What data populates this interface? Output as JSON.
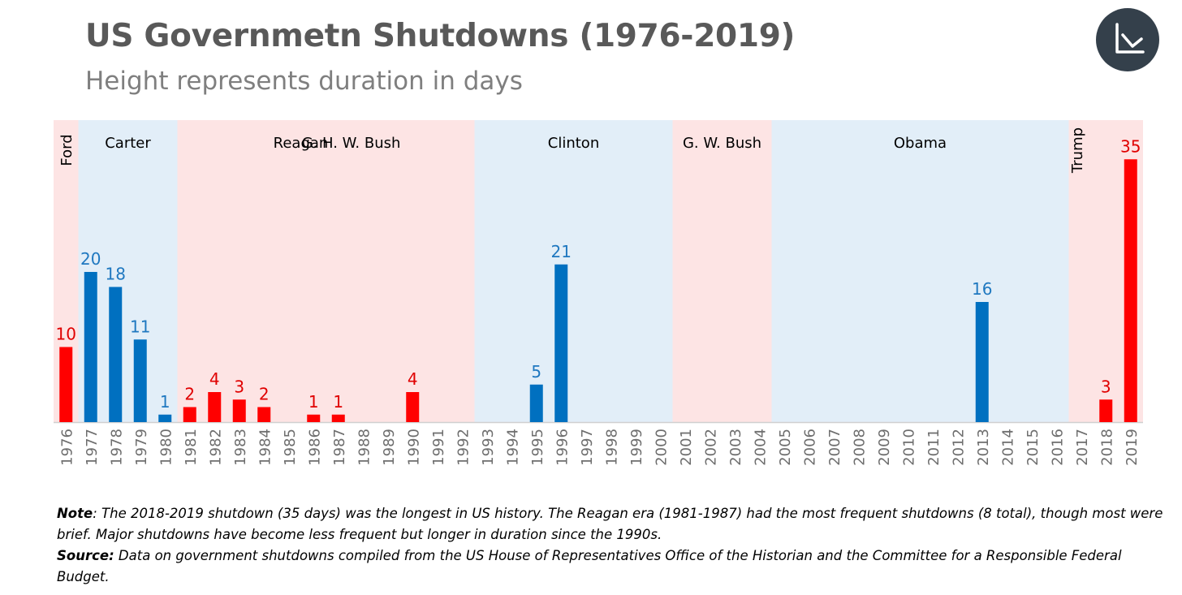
{
  "title": "US Governmetn Shutdowns (1976-2019)",
  "subtitle": "Height represents duration in days",
  "logo": {
    "icon": "chart-axis-logo-icon",
    "bg": "#34404b"
  },
  "colors": {
    "red": "#ff0000",
    "blue": "#0070c0",
    "red_band": "#fde4e4",
    "blue_band": "#e2eef8",
    "red_label": "#e00000",
    "blue_label": "#1f78c0"
  },
  "chart_data": {
    "type": "bar",
    "categories": [
      "1976",
      "1977",
      "1978",
      "1979",
      "1980",
      "1981",
      "1982",
      "1983",
      "1984",
      "1985",
      "1986",
      "1987",
      "1988",
      "1989",
      "1990",
      "1991",
      "1992",
      "1993",
      "1994",
      "1995",
      "1996",
      "1997",
      "1998",
      "1999",
      "2000",
      "2001",
      "2002",
      "2003",
      "2004",
      "2005",
      "2006",
      "2007",
      "2008",
      "2009",
      "2010",
      "2011",
      "2012",
      "2013",
      "2014",
      "2015",
      "2016",
      "2017",
      "2018",
      "2019"
    ],
    "values": [
      10,
      20,
      18,
      11,
      1,
      2,
      4,
      3,
      2,
      0,
      1,
      1,
      0,
      0,
      4,
      0,
      0,
      0,
      0,
      5,
      21,
      0,
      0,
      0,
      0,
      0,
      0,
      0,
      0,
      0,
      0,
      0,
      0,
      0,
      0,
      0,
      0,
      16,
      0,
      0,
      0,
      0,
      3,
      35
    ],
    "party": [
      "R",
      "D",
      "D",
      "D",
      "D",
      "R",
      "R",
      "R",
      "R",
      "R",
      "R",
      "R",
      "R",
      "R",
      "R",
      "R",
      "R",
      "D",
      "D",
      "D",
      "D",
      "D",
      "D",
      "D",
      "D",
      "R",
      "R",
      "R",
      "R",
      "D",
      "D",
      "D",
      "D",
      "D",
      "D",
      "D",
      "D",
      "D",
      "D",
      "D",
      "D",
      "R",
      "R",
      "R"
    ],
    "ylim": [
      0,
      40
    ],
    "grid": false,
    "presidencies": [
      {
        "name": "Ford",
        "start": "1976",
        "end": "1976",
        "party": "R",
        "vertical": true
      },
      {
        "name": "Carter",
        "start": "1977",
        "end": "1980",
        "party": "D"
      },
      {
        "name": "Reagan",
        "start": "1981",
        "end": "1988",
        "party": "R"
      },
      {
        "name": "G. H. W. Bush",
        "start": "1989",
        "end": "1992",
        "party": "R"
      },
      {
        "name": "Clinton",
        "start": "1993",
        "end": "2000",
        "party": "D"
      },
      {
        "name": "G. W. Bush",
        "start": "2001",
        "end": "2004",
        "party": "R"
      },
      {
        "name": "Obama",
        "start": "2005",
        "end": "2016",
        "party": "D"
      },
      {
        "name": "Trump",
        "start": "2017",
        "end": "2019",
        "party": "R",
        "vertical": true
      }
    ]
  },
  "note": {
    "label": "Note",
    "text": ": The 2018-2019 shutdown (35 days) was the longest in US history. The Reagan era (1981-1987) had the most frequent shutdowns (8 total), though most were brief. Major shutdowns have become less frequent but longer in duration since the 1990s."
  },
  "source": {
    "label": "Source:",
    "text": " Data on government shutdowns compiled from the US House of Representatives Office of the Historian and the Committee for a Responsible Federal Budget."
  }
}
